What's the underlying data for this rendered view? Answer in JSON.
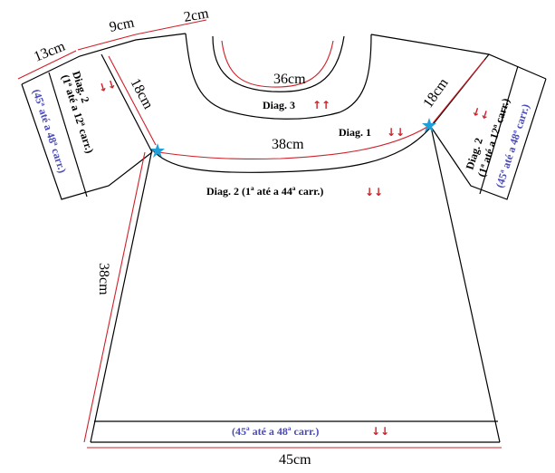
{
  "dimensions": {
    "shoulder_13": "13cm",
    "shoulder_9": "9cm",
    "neck_2": "2cm",
    "neck_36": "36cm",
    "yoke_38": "38cm",
    "sleeve_left_18": "18cm",
    "sleeve_right_18": "18cm",
    "body_38": "38cm",
    "hem_45": "45cm"
  },
  "labels": {
    "diag3": "Diag. 3",
    "diag1": "Diag. 1",
    "diag2_body": "Diag. 2 (1ª até a 44ª carr.)",
    "sleeve_diag2": "Diag. 2",
    "sleeve_range": "(1ª até a 12ª carr.)",
    "sleeve_blue": "(45ª até a 48ª carr.)",
    "hem_blue": "(45ª até a 48ª carr.)"
  },
  "arrows": {
    "up": "↑↑",
    "down": "↓↓"
  },
  "colors": {
    "outline": "#000000",
    "dimension_line": "#d0202a",
    "marker": "#1e9fd8",
    "blue_text": "#4a4ab8"
  },
  "icons": {
    "left_marker": "star-marker-icon",
    "right_marker": "star-marker-icon"
  }
}
